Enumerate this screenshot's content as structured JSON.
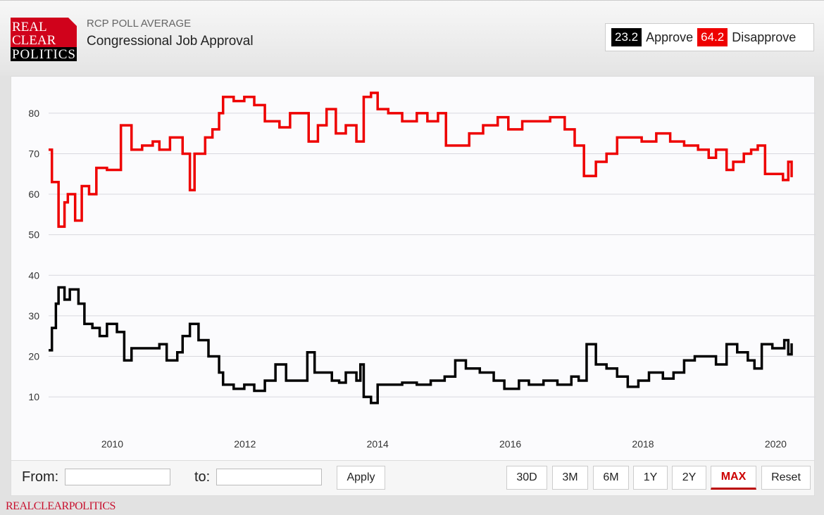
{
  "header": {
    "logo_text": [
      "REAL",
      "CLEAR",
      "POLITICS"
    ],
    "subtitle": "RCP POLL AVERAGE",
    "title": "Congressional Job Approval"
  },
  "legend": {
    "approve_value": "23.2",
    "approve_label": "Approve",
    "disapprove_value": "64.2",
    "disapprove_label": "Disapprove"
  },
  "controls": {
    "from_label": "From:",
    "from_value": "",
    "to_label": "to:",
    "to_value": "",
    "apply_label": "Apply",
    "ranges": [
      "30D",
      "3M",
      "6M",
      "1Y",
      "2Y",
      "MAX"
    ],
    "active_range": "MAX",
    "reset_label": "Reset"
  },
  "footer": {
    "brand": "REALCLEARPOLITICS"
  },
  "colors": {
    "approve": "#000000",
    "disapprove": "#ee0000",
    "brand": "#c8102e"
  },
  "chart_data": {
    "type": "line",
    "title": "Congressional Job Approval",
    "xlim": [
      2009.04,
      2020.24
    ],
    "ylim": [
      0,
      89
    ],
    "x_ticks": [
      2010,
      2012,
      2014,
      2016,
      2018,
      2020
    ],
    "y_ticks": [
      10,
      20,
      30,
      40,
      50,
      60,
      70,
      80
    ],
    "grid": true,
    "legend": "top-right",
    "series": [
      {
        "name": "Disapprove",
        "color": "#ee0000",
        "x": [
          2009.04,
          2009.09,
          2009.19,
          2009.28,
          2009.33,
          2009.44,
          2009.54,
          2009.65,
          2009.76,
          2009.92,
          2010.13,
          2010.29,
          2010.45,
          2010.61,
          2010.71,
          2010.87,
          2011.03,
          2011.06,
          2011.17,
          2011.24,
          2011.4,
          2011.51,
          2011.61,
          2011.67,
          2011.83,
          2011.99,
          2012.14,
          2012.3,
          2012.52,
          2012.68,
          2012.83,
          2012.96,
          2013.1,
          2013.23,
          2013.37,
          2013.52,
          2013.68,
          2013.79,
          2013.9,
          2014.0,
          2014.16,
          2014.37,
          2014.59,
          2014.75,
          2014.91,
          2015.03,
          2015.22,
          2015.38,
          2015.59,
          2015.81,
          2015.97,
          2016.18,
          2016.39,
          2016.6,
          2016.82,
          2016.97,
          2017.11,
          2017.29,
          2017.45,
          2017.61,
          2017.77,
          2017.98,
          2018.2,
          2018.41,
          2018.62,
          2018.83,
          2018.99,
          2019.1,
          2019.26,
          2019.36,
          2019.52,
          2019.63,
          2019.73,
          2019.84,
          2020.0,
          2020.11,
          2020.19,
          2020.24
        ],
        "values": [
          71,
          63,
          52,
          58,
          60,
          53.5,
          62,
          60,
          66.5,
          66,
          77,
          71,
          72,
          73,
          71,
          74,
          74,
          70,
          61,
          70,
          74,
          76,
          80,
          84,
          83,
          84,
          82,
          78,
          76.5,
          80,
          80,
          73,
          77,
          81,
          75,
          77,
          73,
          84,
          85,
          81,
          80,
          78,
          80,
          78,
          80,
          72,
          72,
          75,
          77,
          79,
          76,
          78,
          78,
          79,
          76,
          72,
          64.5,
          68,
          70,
          74,
          74,
          73,
          75,
          73,
          72,
          71,
          69,
          71,
          66,
          68,
          70,
          71,
          72,
          65,
          65,
          63.5,
          68,
          64.2
        ]
      },
      {
        "name": "Approve",
        "color": "#000000",
        "x": [
          2009.04,
          2009.09,
          2009.15,
          2009.19,
          2009.28,
          2009.36,
          2009.49,
          2009.58,
          2009.7,
          2009.81,
          2009.92,
          2010.07,
          2010.18,
          2010.29,
          2010.45,
          2010.61,
          2010.71,
          2010.82,
          2010.98,
          2011.06,
          2011.17,
          2011.3,
          2011.45,
          2011.61,
          2011.67,
          2011.83,
          2011.99,
          2012.14,
          2012.3,
          2012.46,
          2012.62,
          2012.78,
          2012.94,
          2013.05,
          2013.21,
          2013.31,
          2013.42,
          2013.52,
          2013.68,
          2013.74,
          2013.79,
          2013.9,
          2014.0,
          2014.16,
          2014.37,
          2014.59,
          2014.8,
          2015.01,
          2015.17,
          2015.33,
          2015.54,
          2015.75,
          2015.91,
          2016.13,
          2016.28,
          2016.5,
          2016.71,
          2016.92,
          2017.03,
          2017.15,
          2017.29,
          2017.45,
          2017.61,
          2017.77,
          2017.93,
          2018.09,
          2018.3,
          2018.46,
          2018.62,
          2018.78,
          2018.94,
          2019.1,
          2019.26,
          2019.42,
          2019.58,
          2019.68,
          2019.79,
          2019.95,
          2020.05,
          2020.13,
          2020.19,
          2020.24
        ],
        "values": [
          21.5,
          27,
          33,
          37,
          34,
          36.5,
          33,
          28,
          27,
          25,
          28,
          26,
          19,
          22,
          22,
          22,
          23,
          19,
          21,
          25,
          28,
          24,
          20,
          16,
          13,
          12,
          13,
          11.5,
          14,
          18,
          14,
          14,
          21,
          16,
          16,
          14,
          13.5,
          16,
          14,
          18,
          10,
          8.5,
          13,
          13,
          13.5,
          13,
          14,
          15,
          19,
          17,
          16,
          14,
          12,
          14,
          13,
          14,
          13,
          15,
          14,
          23,
          18,
          17,
          15,
          12.5,
          14,
          16,
          14.5,
          16,
          19,
          20,
          20,
          18,
          23,
          21,
          19,
          17,
          23,
          22,
          22,
          24,
          20.5,
          23.2
        ]
      }
    ]
  }
}
